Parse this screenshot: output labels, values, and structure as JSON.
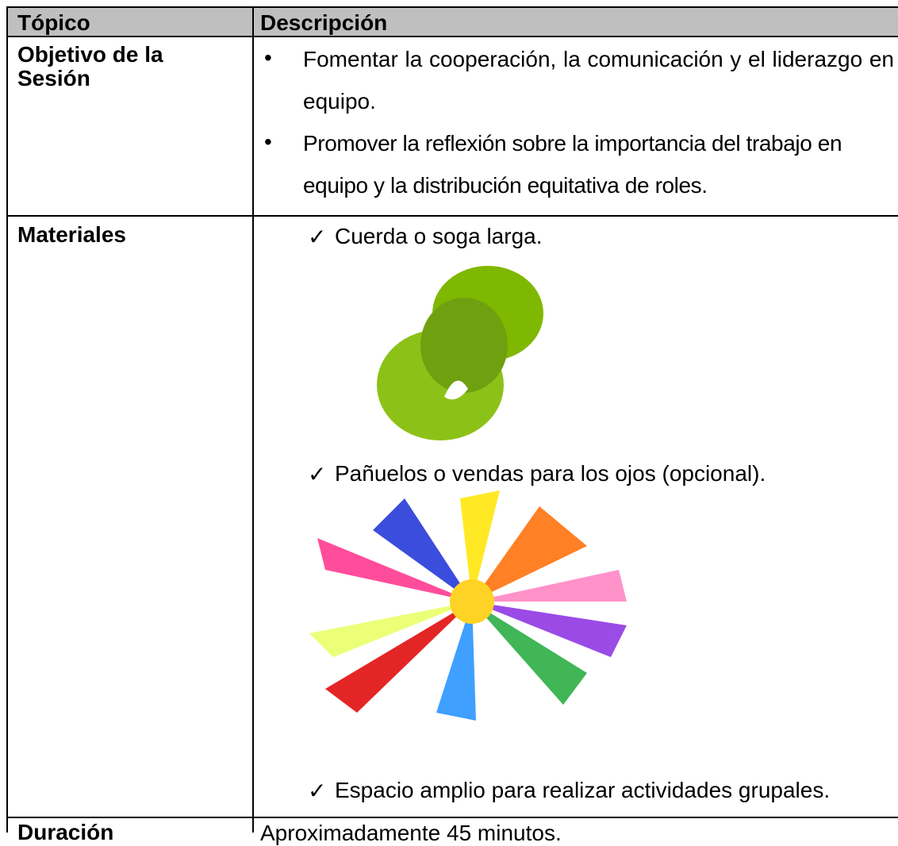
{
  "table": {
    "header": [
      "Tópico",
      "Descripción"
    ],
    "rows": [
      {
        "topic": "Objetivo de la Sesión",
        "items": [
          "Fomentar la cooperación, la comunicación y el liderazgo en equipo.",
          "Promover la reflexión sobre la importancia del trabajo en equipo y la distribución equitativa de roles."
        ]
      },
      {
        "topic": "Materiales",
        "items": [
          "Cuerda o soga larga.",
          "Pañuelos o vendas para los ojos (opcional).",
          "Espacio amplio para realizar actividades grupales."
        ]
      },
      {
        "topic": "Duración",
        "text": "Aproximadamente 45 minutos."
      }
    ]
  }
}
